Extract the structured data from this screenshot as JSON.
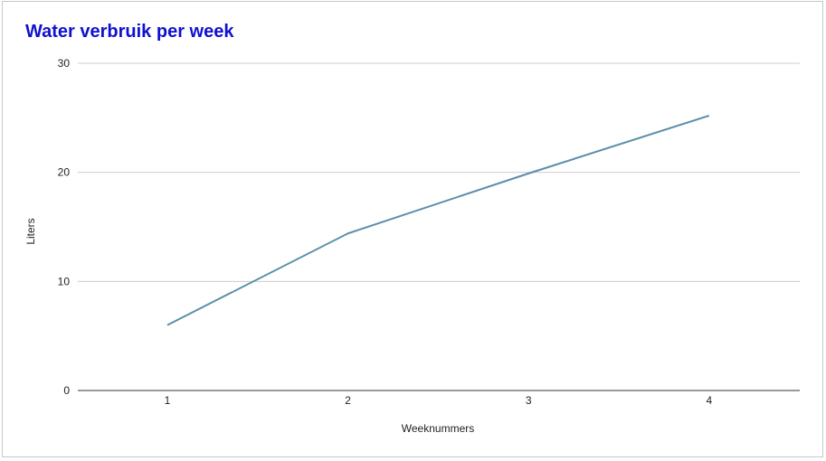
{
  "chart_data": {
    "type": "line",
    "title": "Water verbruik per week",
    "xlabel": "Weeknummers",
    "ylabel": "Liters",
    "categories": [
      "1",
      "2",
      "3",
      "4"
    ],
    "series": [
      {
        "values": [
          6,
          14.4,
          19.9,
          25.2
        ]
      }
    ],
    "ylim": [
      0,
      30
    ],
    "yticks": [
      "0",
      "10",
      "20",
      "30"
    ],
    "grid": true,
    "colors": {
      "title": "#0f11d1",
      "line": "#5a8fab",
      "grid": "#cccccc",
      "axis": "#333333"
    }
  }
}
